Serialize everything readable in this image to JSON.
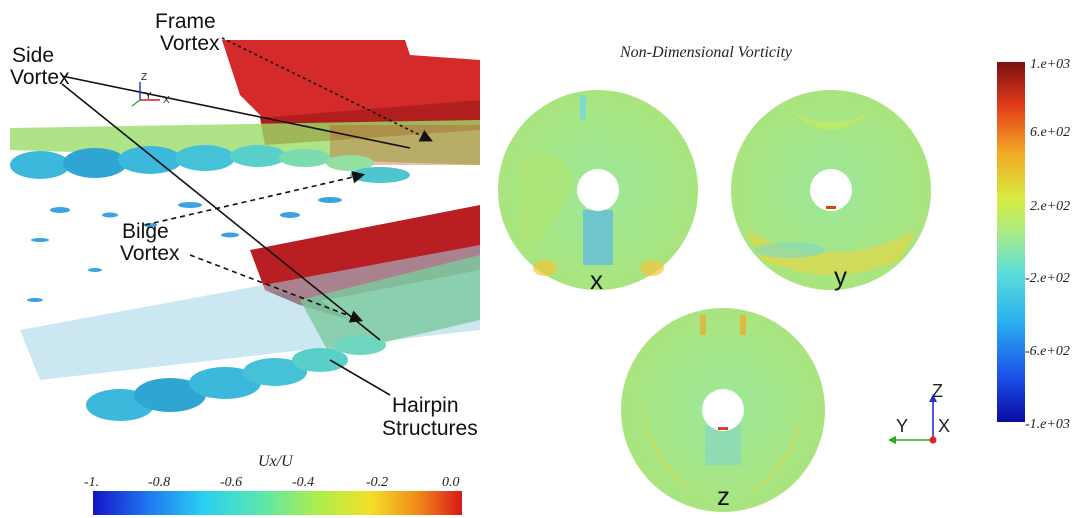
{
  "left_panel": {
    "annotations": {
      "frame_vortex": [
        "Frame",
        "Vortex"
      ],
      "side_vortex": [
        "Side",
        "Vortex"
      ],
      "bilge_vortex": [
        "Bilge",
        "Vortex"
      ],
      "hairpin": [
        "Hairpin",
        "Structures"
      ]
    },
    "axes_triad": {
      "z": "Z",
      "y": "Y",
      "x": "X"
    },
    "colorbar": {
      "title": "Ux/U",
      "ticks": [
        "-1.",
        "-0.8",
        "-0.6",
        "-0.4",
        "-0.2",
        "0.0"
      ],
      "range": [
        -1.0,
        0.0
      ]
    }
  },
  "right_panel": {
    "title": "Non-Dimensional Vorticity",
    "discs": [
      {
        "label": "x"
      },
      {
        "label": "y"
      },
      {
        "label": "z"
      }
    ],
    "triad": {
      "z": "Z",
      "y": "Y",
      "x": "X"
    },
    "colorbar": {
      "ticks": [
        "1.e+03",
        "6.e+02",
        "2.e+02",
        "-2.e+02",
        "-6.e+02",
        "-1.e+03"
      ],
      "range": [
        -1000,
        1000
      ]
    }
  },
  "colors": {
    "hull_red": "#d42a2a",
    "free_stream": "#9be07a",
    "vortex_blue": "#3bb8dc"
  }
}
